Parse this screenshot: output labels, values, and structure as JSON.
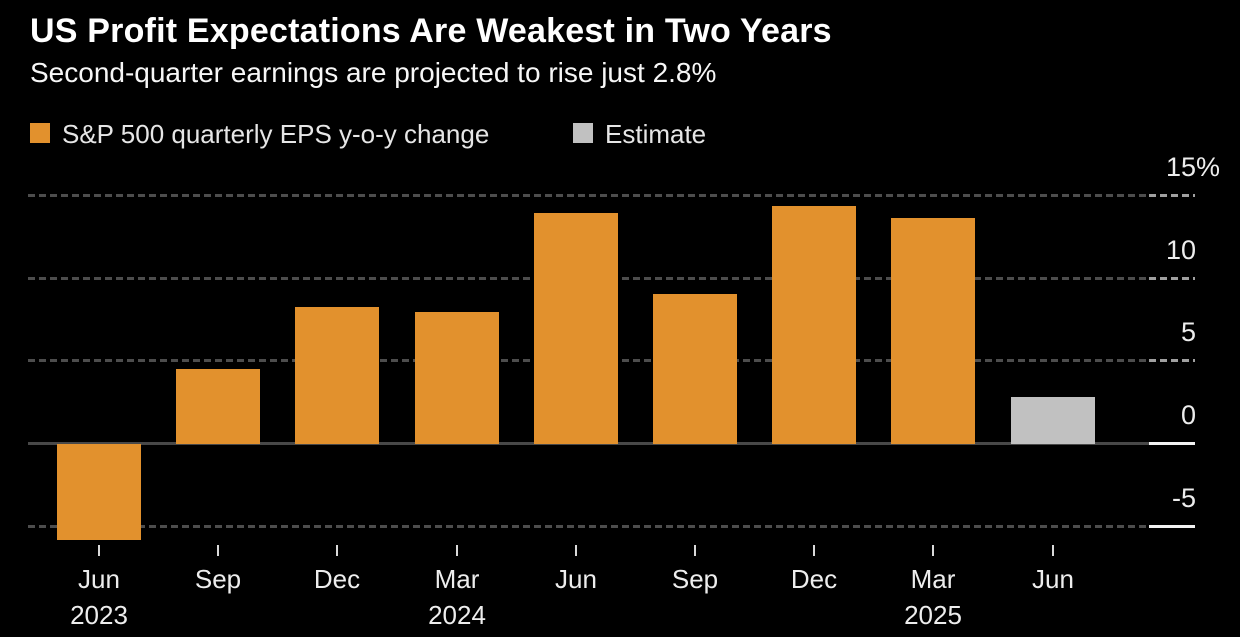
{
  "header": {
    "title": "US Profit Expectations Are Weakest in Two Years",
    "subtitle": "Second-quarter earnings are projected to rise just 2.8%"
  },
  "legend": [
    {
      "label": "S&P 500 quarterly EPS y-o-y change",
      "color": "#e2912d"
    },
    {
      "label": "Estimate",
      "color": "#c1c1c1"
    }
  ],
  "chart_data": {
    "type": "bar",
    "title": "US Profit Expectations Are Weakest in Two Years",
    "subtitle": "Second-quarter earnings are projected to rise just 2.8%",
    "series_name": "S&P 500 quarterly EPS y-o-y change",
    "unit": "%",
    "bars": [
      {
        "month": "Jun",
        "year": "2023",
        "value": -5.8,
        "estimate": false
      },
      {
        "month": "Sep",
        "year": "",
        "value": 4.5,
        "estimate": false
      },
      {
        "month": "Dec",
        "year": "",
        "value": 8.2,
        "estimate": false
      },
      {
        "month": "Mar",
        "year": "2024",
        "value": 7.9,
        "estimate": false
      },
      {
        "month": "Jun",
        "year": "",
        "value": 13.9,
        "estimate": false
      },
      {
        "month": "Sep",
        "year": "",
        "value": 9.0,
        "estimate": false
      },
      {
        "month": "Dec",
        "year": "",
        "value": 14.3,
        "estimate": false
      },
      {
        "month": "Mar",
        "year": "2025",
        "value": 13.6,
        "estimate": false
      },
      {
        "month": "Jun",
        "year": "",
        "value": 2.8,
        "estimate": true
      }
    ],
    "y_axis": {
      "tick_labels": [
        "15%",
        "10",
        "5",
        "0",
        "-5"
      ],
      "tick_values": [
        15,
        10,
        5,
        0,
        -5
      ],
      "side": "right"
    },
    "ylim": [
      -7,
      16
    ],
    "grid": true,
    "legend_position": "top-left",
    "colors": {
      "actual": "#e2912d",
      "estimate": "#c1c1c1",
      "background": "#000000",
      "gridline": "#4d4d4d",
      "text": "#ededed"
    }
  }
}
